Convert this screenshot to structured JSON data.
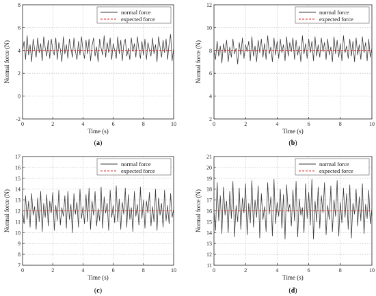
{
  "colors": {
    "normal_force": "#3a3a3a",
    "expected_force": "#e02020",
    "grid": "#b0b0b0",
    "frame": "#333333"
  },
  "chart_data": [
    {
      "type": "line",
      "panel": "a",
      "xlabel": "Time (s)",
      "ylabel": "Normal force (N)",
      "xlim": [
        0,
        10
      ],
      "ylim": [
        -2,
        8
      ],
      "xticks": [
        0,
        2,
        4,
        6,
        8,
        10
      ],
      "yticks": [
        -2,
        0,
        2,
        4,
        6,
        8
      ],
      "grid": true,
      "legend_position": "top-right",
      "expected": 4,
      "series": [
        {
          "name": "normal force",
          "style": "solid",
          "x": [
            0,
            0.1,
            0.2,
            0.3,
            0.4,
            0.5,
            0.6,
            0.7,
            0.8,
            0.9,
            1.0,
            1.1,
            1.2,
            1.3,
            1.4,
            1.5,
            1.6,
            1.7,
            1.8,
            1.9,
            2.0,
            2.1,
            2.2,
            2.3,
            2.4,
            2.5,
            2.6,
            2.7,
            2.8,
            2.9,
            3.0,
            3.1,
            3.2,
            3.3,
            3.4,
            3.5,
            3.6,
            3.7,
            3.8,
            3.9,
            4.0,
            4.1,
            4.2,
            4.3,
            4.4,
            4.5,
            4.6,
            4.7,
            4.8,
            4.9,
            5.0,
            5.1,
            5.2,
            5.3,
            5.4,
            5.5,
            5.6,
            5.7,
            5.8,
            5.9,
            6.0,
            6.1,
            6.2,
            6.3,
            6.4,
            6.5,
            6.6,
            6.7,
            6.8,
            6.9,
            7.0,
            7.1,
            7.2,
            7.3,
            7.4,
            7.5,
            7.6,
            7.7,
            7.8,
            7.9,
            8.0,
            8.1,
            8.2,
            8.3,
            8.4,
            8.5,
            8.6,
            8.7,
            8.8,
            8.9,
            9.0,
            9.1,
            9.2,
            9.3,
            9.4,
            9.5,
            9.6,
            9.7,
            9.8,
            9.9,
            10.0
          ],
          "values": [
            4.0,
            4.8,
            3.2,
            5.3,
            3.6,
            4.5,
            3.0,
            5.0,
            4.1,
            3.4,
            5.1,
            3.8,
            4.6,
            3.1,
            5.2,
            4.2,
            3.5,
            4.9,
            3.3,
            5.0,
            4.0,
            3.6,
            5.1,
            3.2,
            4.7,
            4.1,
            3.0,
            5.2,
            3.7,
            4.5,
            3.3,
            5.0,
            4.2,
            3.4,
            5.1,
            3.9,
            3.2,
            4.8,
            3.6,
            5.2,
            4.0,
            3.3,
            4.9,
            3.7,
            5.0,
            3.1,
            4.4,
            5.1,
            3.5,
            4.3,
            3.0,
            5.0,
            4.2,
            3.6,
            5.3,
            3.4,
            4.7,
            3.8,
            5.1,
            3.2,
            4.6,
            4.0,
            3.3,
            5.2,
            3.7,
            4.9,
            3.1,
            4.5,
            5.0,
            3.5,
            4.2,
            3.2,
            5.1,
            3.9,
            4.6,
            3.4,
            5.2,
            4.1,
            3.3,
            4.8,
            3.6,
            5.0,
            3.2,
            4.7,
            4.0,
            3.5,
            5.1,
            3.7,
            4.5,
            3.0,
            5.2,
            4.3,
            3.4,
            4.9,
            3.8,
            5.0,
            3.2,
            4.6,
            5.4,
            3.1,
            4.2
          ]
        },
        {
          "name": "expected force",
          "style": "dashed",
          "x": [
            0,
            10
          ],
          "values": [
            4,
            4
          ]
        }
      ]
    },
    {
      "type": "line",
      "panel": "b",
      "xlabel": "Time (s)",
      "ylabel": "Normal force (N)",
      "xlim": [
        0,
        10
      ],
      "ylim": [
        2,
        12
      ],
      "xticks": [
        0,
        2,
        4,
        6,
        8,
        10
      ],
      "yticks": [
        2,
        4,
        6,
        8,
        10,
        12
      ],
      "grid": true,
      "legend_position": "top-right",
      "expected": 8,
      "series": [
        {
          "name": "normal force",
          "style": "solid",
          "x": [
            0,
            0.1,
            0.2,
            0.3,
            0.4,
            0.5,
            0.6,
            0.7,
            0.8,
            0.9,
            1.0,
            1.1,
            1.2,
            1.3,
            1.4,
            1.5,
            1.6,
            1.7,
            1.8,
            1.9,
            2.0,
            2.1,
            2.2,
            2.3,
            2.4,
            2.5,
            2.6,
            2.7,
            2.8,
            2.9,
            3.0,
            3.1,
            3.2,
            3.3,
            3.4,
            3.5,
            3.6,
            3.7,
            3.8,
            3.9,
            4.0,
            4.1,
            4.2,
            4.3,
            4.4,
            4.5,
            4.6,
            4.7,
            4.8,
            4.9,
            5.0,
            5.1,
            5.2,
            5.3,
            5.4,
            5.5,
            5.6,
            5.7,
            5.8,
            5.9,
            6.0,
            6.1,
            6.2,
            6.3,
            6.4,
            6.5,
            6.6,
            6.7,
            6.8,
            6.9,
            7.0,
            7.1,
            7.2,
            7.3,
            7.4,
            7.5,
            7.6,
            7.7,
            7.8,
            7.9,
            8.0,
            8.1,
            8.2,
            8.3,
            8.4,
            8.5,
            8.6,
            8.7,
            8.8,
            8.9,
            9.0,
            9.1,
            9.2,
            9.3,
            9.4,
            9.5,
            9.6,
            9.7,
            9.8,
            9.9,
            10.0
          ],
          "values": [
            8.0,
            7.2,
            8.8,
            7.5,
            8.4,
            6.9,
            8.6,
            7.8,
            8.9,
            7.0,
            8.3,
            7.4,
            9.0,
            7.7,
            8.2,
            6.8,
            8.7,
            7.6,
            9.1,
            7.3,
            8.5,
            7.9,
            8.8,
            7.1,
            9.2,
            7.5,
            8.4,
            7.0,
            8.9,
            7.8,
            9.0,
            7.4,
            8.6,
            7.2,
            9.3,
            7.7,
            8.3,
            7.0,
            9.1,
            7.6,
            8.8,
            7.3,
            9.0,
            7.8,
            8.5,
            7.1,
            9.2,
            7.5,
            8.7,
            7.9,
            9.1,
            7.2,
            8.9,
            7.6,
            8.4,
            7.0,
            9.3,
            7.7,
            8.6,
            7.3,
            9.0,
            7.8,
            8.8,
            7.1,
            9.2,
            7.5,
            8.5,
            7.4,
            9.1,
            7.9,
            8.7,
            7.2,
            9.0,
            7.6,
            8.3,
            7.0,
            9.2,
            7.7,
            8.9,
            7.4,
            8.6,
            7.1,
            9.3,
            7.8,
            8.4,
            7.3,
            9.0,
            7.5,
            8.8,
            7.0,
            9.1,
            7.6,
            8.5,
            7.2,
            9.2,
            7.8,
            8.7,
            7.1,
            9.0,
            7.4,
            8.2
          ]
        },
        {
          "name": "expected force",
          "style": "dashed",
          "x": [
            0,
            10
          ],
          "values": [
            8,
            8
          ]
        }
      ]
    },
    {
      "type": "line",
      "panel": "c",
      "xlabel": "Time (s)",
      "ylabel": "Normal force (N)",
      "xlim": [
        0,
        10
      ],
      "ylim": [
        7,
        17
      ],
      "xticks": [
        0,
        2,
        4,
        6,
        8,
        10
      ],
      "yticks": [
        7,
        8,
        9,
        10,
        11,
        12,
        13,
        14,
        15,
        16,
        17
      ],
      "grid": true,
      "legend_position": "top-right",
      "expected": 12,
      "series": [
        {
          "name": "normal force",
          "style": "solid",
          "x": [
            0,
            0.1,
            0.2,
            0.3,
            0.4,
            0.5,
            0.6,
            0.7,
            0.8,
            0.9,
            1.0,
            1.1,
            1.2,
            1.3,
            1.4,
            1.5,
            1.6,
            1.7,
            1.8,
            1.9,
            2.0,
            2.1,
            2.2,
            2.3,
            2.4,
            2.5,
            2.6,
            2.7,
            2.8,
            2.9,
            3.0,
            3.1,
            3.2,
            3.3,
            3.4,
            3.5,
            3.6,
            3.7,
            3.8,
            3.9,
            4.0,
            4.1,
            4.2,
            4.3,
            4.4,
            4.5,
            4.6,
            4.7,
            4.8,
            4.9,
            5.0,
            5.1,
            5.2,
            5.3,
            5.4,
            5.5,
            5.6,
            5.7,
            5.8,
            5.9,
            6.0,
            6.1,
            6.2,
            6.3,
            6.4,
            6.5,
            6.6,
            6.7,
            6.8,
            6.9,
            7.0,
            7.1,
            7.2,
            7.3,
            7.4,
            7.5,
            7.6,
            7.7,
            7.8,
            7.9,
            8.0,
            8.1,
            8.2,
            8.3,
            8.4,
            8.5,
            8.6,
            8.7,
            8.8,
            8.9,
            9.0,
            9.1,
            9.2,
            9.3,
            9.4,
            9.5,
            9.6,
            9.7,
            9.8,
            9.9,
            10.0
          ],
          "values": [
            12.0,
            10.8,
            13.4,
            11.2,
            12.9,
            10.5,
            13.6,
            11.6,
            12.4,
            10.3,
            13.2,
            11.0,
            13.8,
            10.1,
            12.7,
            11.4,
            13.5,
            10.6,
            12.9,
            11.8,
            13.7,
            10.2,
            12.5,
            11.1,
            13.9,
            10.7,
            12.3,
            11.5,
            13.4,
            10.4,
            13.8,
            11.2,
            12.6,
            10.0,
            13.6,
            11.7,
            12.8,
            10.5,
            14.0,
            11.3,
            12.4,
            10.8,
            13.5,
            11.0,
            14.1,
            10.3,
            12.9,
            11.6,
            13.8,
            10.6,
            12.2,
            11.1,
            14.2,
            10.4,
            13.3,
            11.8,
            12.7,
            10.2,
            13.9,
            11.4,
            12.5,
            10.9,
            14.3,
            11.0,
            13.1,
            10.3,
            12.8,
            11.7,
            14.1,
            10.5,
            13.5,
            11.2,
            12.3,
            10.1,
            13.8,
            11.5,
            12.6,
            10.7,
            14.2,
            11.3,
            13.0,
            10.4,
            12.9,
            11.8,
            13.7,
            10.6,
            12.4,
            11.0,
            14.0,
            10.2,
            13.2,
            11.6,
            12.7,
            10.5,
            13.9,
            11.1,
            12.5,
            10.8,
            13.6,
            11.4,
            12.2
          ]
        },
        {
          "name": "expected force",
          "style": "dashed",
          "x": [
            0,
            10
          ],
          "values": [
            12,
            12
          ]
        }
      ]
    },
    {
      "type": "line",
      "panel": "d",
      "xlabel": "Time (s)",
      "ylabel": "Normal force (N)",
      "xlim": [
        0,
        10
      ],
      "ylim": [
        11,
        21
      ],
      "xticks": [
        0,
        2,
        4,
        6,
        8,
        10
      ],
      "yticks": [
        11,
        12,
        13,
        14,
        15,
        16,
        17,
        18,
        19,
        20,
        21
      ],
      "grid": true,
      "legend_position": "top-right",
      "expected": 16,
      "series": [
        {
          "name": "normal force",
          "style": "solid",
          "x": [
            0,
            0.1,
            0.2,
            0.3,
            0.4,
            0.5,
            0.6,
            0.7,
            0.8,
            0.9,
            1.0,
            1.1,
            1.2,
            1.3,
            1.4,
            1.5,
            1.6,
            1.7,
            1.8,
            1.9,
            2.0,
            2.1,
            2.2,
            2.3,
            2.4,
            2.5,
            2.6,
            2.7,
            2.8,
            2.9,
            3.0,
            3.1,
            3.2,
            3.3,
            3.4,
            3.5,
            3.6,
            3.7,
            3.8,
            3.9,
            4.0,
            4.1,
            4.2,
            4.3,
            4.4,
            4.5,
            4.6,
            4.7,
            4.8,
            4.9,
            5.0,
            5.1,
            5.2,
            5.3,
            5.4,
            5.5,
            5.6,
            5.7,
            5.8,
            5.9,
            6.0,
            6.1,
            6.2,
            6.3,
            6.4,
            6.5,
            6.6,
            6.7,
            6.8,
            6.9,
            7.0,
            7.1,
            7.2,
            7.3,
            7.4,
            7.5,
            7.6,
            7.7,
            7.8,
            7.9,
            8.0,
            8.1,
            8.2,
            8.3,
            8.4,
            8.5,
            8.6,
            8.7,
            8.8,
            8.9,
            9.0,
            9.1,
            9.2,
            9.3,
            9.4,
            9.5,
            9.6,
            9.7,
            9.8,
            9.9,
            10.0
          ],
          "values": [
            16.0,
            14.2,
            18.6,
            15.1,
            17.4,
            13.9,
            18.2,
            15.6,
            16.9,
            14.0,
            17.8,
            15.3,
            18.7,
            13.6,
            16.5,
            15.0,
            18.1,
            14.3,
            17.2,
            15.8,
            18.5,
            13.8,
            16.7,
            14.9,
            18.8,
            14.5,
            17.0,
            15.4,
            18.3,
            13.5,
            17.6,
            15.2,
            16.4,
            14.1,
            18.6,
            15.7,
            17.3,
            13.7,
            18.9,
            14.8,
            16.8,
            15.5,
            18.0,
            14.4,
            17.5,
            13.4,
            18.4,
            15.9,
            16.6,
            14.6,
            17.9,
            15.1,
            18.7,
            13.6,
            17.1,
            15.6,
            16.3,
            14.0,
            18.5,
            15.3,
            17.7,
            14.7,
            18.9,
            13.4,
            16.9,
            15.0,
            18.2,
            14.4,
            17.4,
            15.8,
            18.6,
            13.8,
            16.5,
            15.2,
            18.3,
            14.1,
            17.0,
            15.5,
            18.8,
            13.7,
            16.8,
            14.9,
            18.1,
            15.4,
            17.6,
            14.3,
            18.4,
            13.5,
            16.7,
            15.7,
            18.0,
            14.6,
            17.3,
            15.1,
            18.5,
            13.9,
            16.6,
            15.3,
            17.9,
            14.8,
            16.2
          ]
        },
        {
          "name": "expected force",
          "style": "dashed",
          "x": [
            0,
            10
          ],
          "values": [
            16,
            16
          ]
        }
      ]
    }
  ],
  "panels": [
    {
      "label": "(a)"
    },
    {
      "label": "(b)"
    },
    {
      "label": "(c)"
    },
    {
      "label": "(d)"
    }
  ]
}
